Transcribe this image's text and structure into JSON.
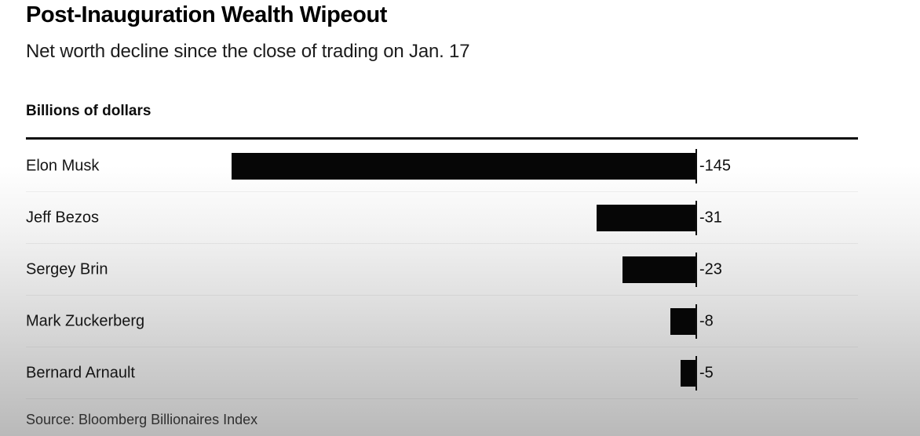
{
  "header": {
    "title": "Post-Inauguration Wealth Wipeout",
    "subtitle": "Net worth decline since the close of trading on Jan. 17"
  },
  "axis": {
    "unit_label": "Billions of dollars"
  },
  "source": {
    "text": "Source: Bloomberg Billionaires Index"
  },
  "colors": {
    "bar": "#060606",
    "rule": "#0d0d0d",
    "text": "#0d0d0d",
    "bg_top": "#ffffff",
    "bg_bottom": "#b9b9b9"
  },
  "chart_data": {
    "type": "bar",
    "orientation": "horizontal",
    "title": "Post-Inauguration Wealth Wipeout",
    "subtitle": "Net worth decline since the close of trading on Jan. 17",
    "unit": "Billions of dollars",
    "categories": [
      "Elon Musk",
      "Jeff Bezos",
      "Sergey Brin",
      "Mark Zuckerberg",
      "Bernard Arnault"
    ],
    "values": [
      -145,
      -31,
      -23,
      -8,
      -5
    ],
    "value_labels": [
      "-145",
      "-31",
      "-23",
      "-8",
      "-5"
    ],
    "xlim": [
      -150,
      0
    ],
    "baseline": 0,
    "grid": false,
    "legend": "none",
    "bar_color": "#060606",
    "value_label_position": "right-of-baseline",
    "source": "Source: Bloomberg Billionaires Index"
  }
}
